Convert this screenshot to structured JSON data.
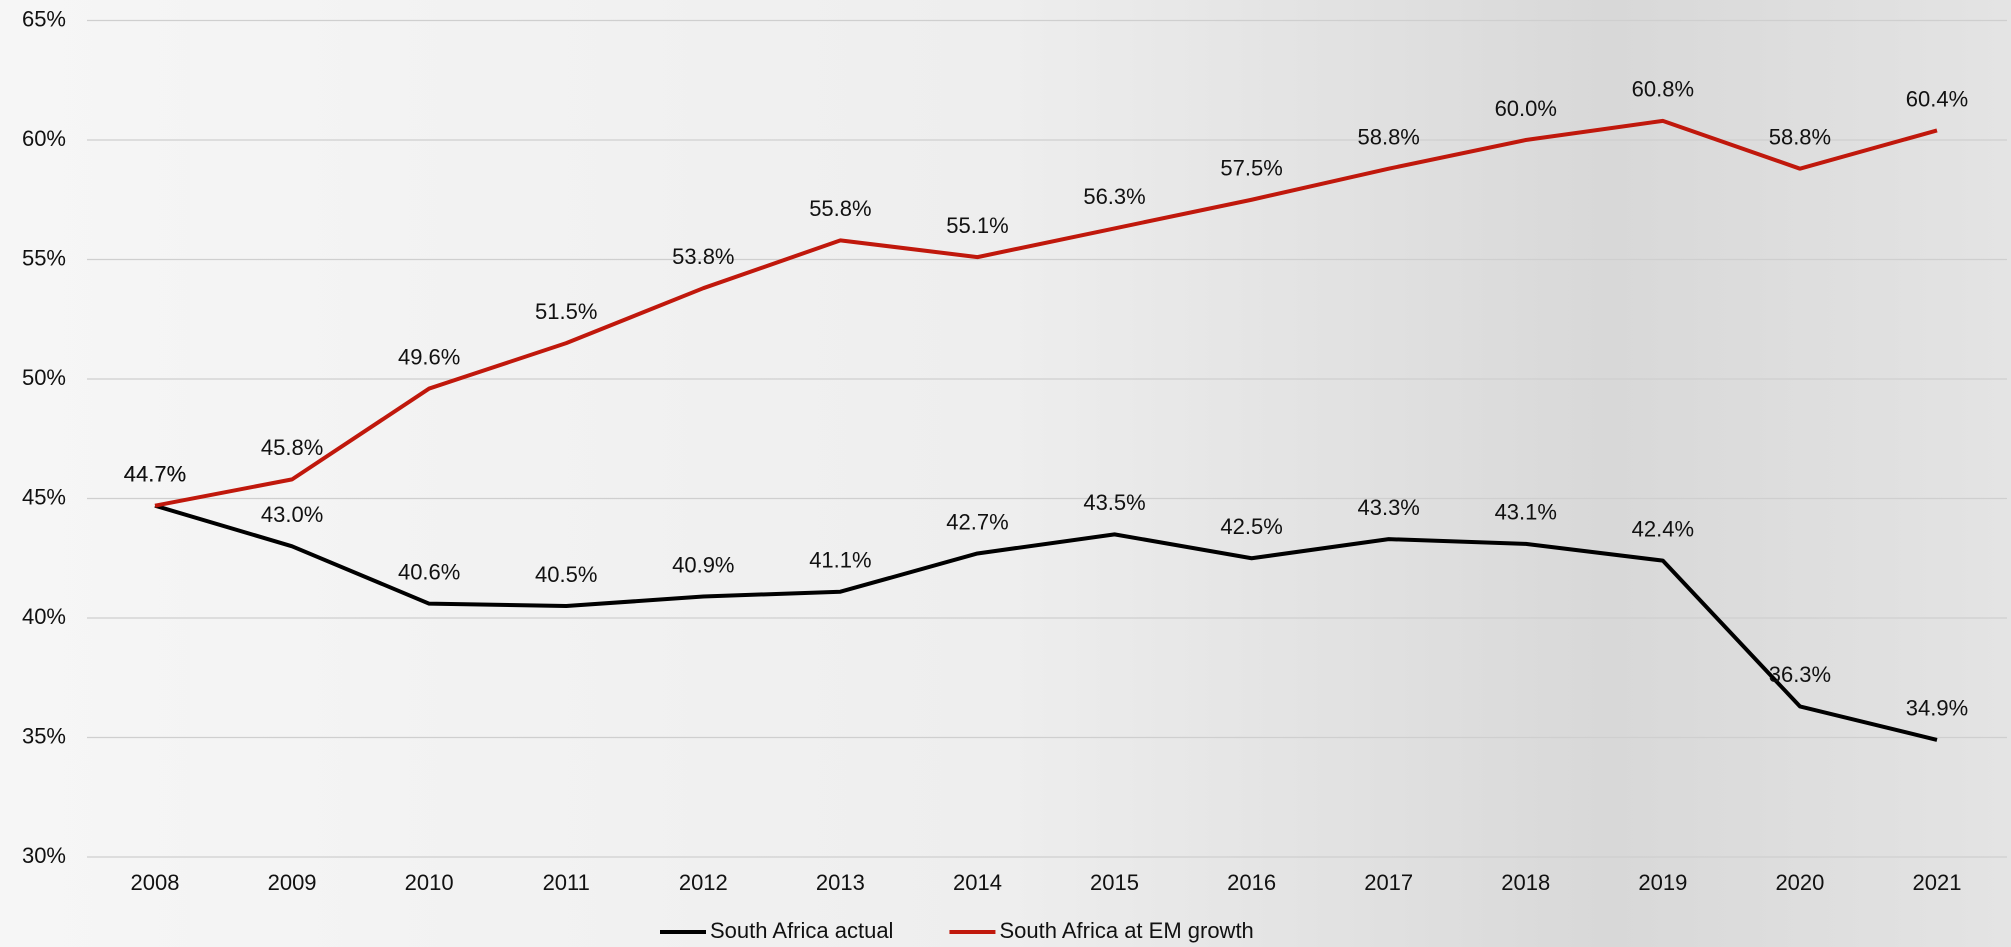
{
  "chart_data": {
    "type": "line",
    "categories": [
      "2008",
      "2009",
      "2010",
      "2011",
      "2012",
      "2013",
      "2014",
      "2015",
      "2016",
      "2017",
      "2018",
      "2019",
      "2020",
      "2021"
    ],
    "series": [
      {
        "name": "South Africa actual",
        "color": "#000000",
        "values": [
          44.7,
          43.0,
          40.6,
          40.5,
          40.9,
          41.1,
          42.7,
          43.5,
          42.5,
          43.3,
          43.1,
          42.4,
          36.3,
          34.9
        ],
        "value_labels": [
          "44.7%",
          "43.0%",
          "40.6%",
          "40.5%",
          "40.9%",
          "41.1%",
          "42.7%",
          "43.5%",
          "42.5%",
          "43.3%",
          "43.1%",
          "42.4%",
          "36.3%",
          "34.9%"
        ]
      },
      {
        "name": "South Africa at EM growth",
        "color": "#c0180c",
        "values": [
          44.7,
          45.8,
          49.6,
          51.5,
          53.8,
          55.8,
          55.1,
          56.3,
          57.5,
          58.8,
          60.0,
          60.8,
          58.8,
          60.4
        ],
        "value_labels": [
          "44.7%",
          "45.8%",
          "49.6%",
          "51.5%",
          "53.8%",
          "55.8%",
          "55.1%",
          "56.3%",
          "57.5%",
          "58.8%",
          "60.0%",
          "60.8%",
          "58.8%",
          "60.4%"
        ]
      }
    ],
    "ylim": [
      30,
      65
    ],
    "yticks": [
      {
        "value": 30,
        "label": "30%"
      },
      {
        "value": 35,
        "label": "35%"
      },
      {
        "value": 40,
        "label": "40%"
      },
      {
        "value": 45,
        "label": "45%"
      },
      {
        "value": 50,
        "label": "50%"
      },
      {
        "value": 55,
        "label": "55%"
      },
      {
        "value": 60,
        "label": "60%"
      },
      {
        "value": 65,
        "label": "65%"
      }
    ],
    "grid": true
  }
}
